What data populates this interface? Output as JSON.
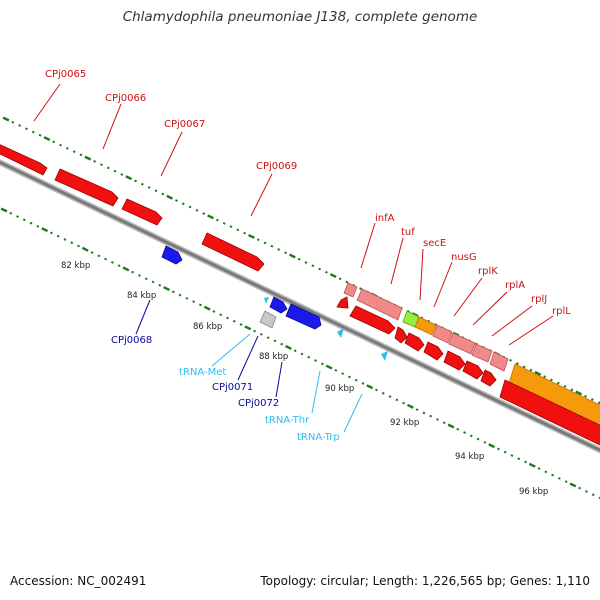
{
  "title": "Chlamydophila pneumoniae J138, complete genome",
  "footer": {
    "accession": "Accession: NC_002491",
    "summary": "Topology: circular; Length: 1,226,565 bp; Genes: 1,110"
  },
  "colors": {
    "cds_forward": "#f01010",
    "cds_reverse": "#1a1aee",
    "pseudo_or_partial": "#f08a8a",
    "tuf": "#f08a8a",
    "secE": "#99ee44",
    "long_operon": "#f59a0a",
    "trna": "#33bbee",
    "gray_feature": "#c8c8c8",
    "backbone": "#808080",
    "tick": "#1a7a1a",
    "forward_label": "#cc1111",
    "reverse_label": "#0a0a99",
    "trna_label": "#33bbee"
  },
  "scale_labels": [
    "82 kbp",
    "84 kbp",
    "86 kbp",
    "88 kbp",
    "90 kbp",
    "92 kbp",
    "94 kbp",
    "96 kbp"
  ],
  "gene_labels": {
    "forward": [
      "CPj0065",
      "CPj0066",
      "CPj0067",
      "CPj0069",
      "infA",
      "tuf",
      "secE",
      "nusG",
      "rplK",
      "rplA",
      "rplJ",
      "rplL"
    ],
    "reverse": [
      "CPj0068",
      "CPj0071",
      "CPj0072"
    ],
    "trna": [
      "tRNA-Met",
      "tRNA-Thr",
      "tRNA-Trp"
    ]
  }
}
